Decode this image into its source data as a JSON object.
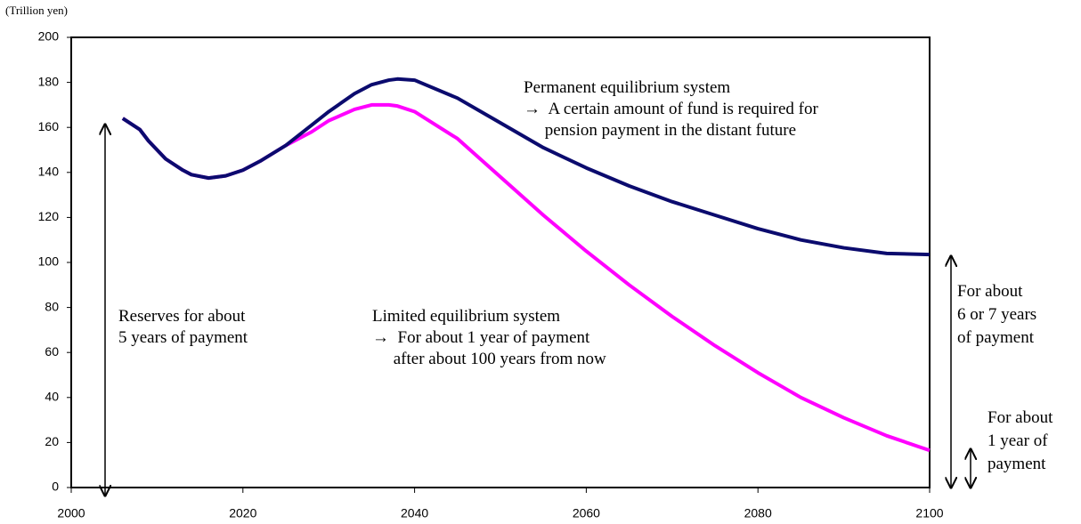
{
  "chart_data": {
    "type": "line",
    "y_axis_label": "(Trillion yen)",
    "x": [
      2006,
      2008,
      2009,
      2011,
      2013,
      2014,
      2016,
      2018,
      2020,
      2022,
      2025,
      2028,
      2030,
      2033,
      2035,
      2037,
      2038,
      2040,
      2045,
      2050,
      2055,
      2060,
      2065,
      2070,
      2075,
      2080,
      2085,
      2090,
      2095,
      2100
    ],
    "series": [
      {
        "color": "#0b0b6e",
        "values": [
          164,
          159,
          154,
          146,
          141,
          139,
          137.5,
          138.5,
          141,
          145,
          152,
          161,
          167,
          175,
          179,
          181,
          181.5,
          181,
          173,
          162,
          151,
          142,
          134,
          127,
          121,
          115,
          110,
          106.5,
          104,
          103.5
        ]
      },
      {
        "color": "#ff00ff",
        "values": [
          164,
          159,
          154,
          146,
          141,
          139,
          137.5,
          138.5,
          141,
          145,
          152,
          158,
          163,
          168,
          170,
          170,
          169.5,
          167,
          155,
          138,
          121,
          105,
          90,
          76,
          63,
          51,
          40,
          31,
          23,
          16.5
        ]
      }
    ],
    "xlim": [
      2000,
      2100
    ],
    "xticks": [
      2000,
      2020,
      2040,
      2060,
      2080,
      2100
    ],
    "ylim": [
      0,
      200
    ],
    "yticks": [
      0,
      20,
      40,
      60,
      80,
      100,
      120,
      140,
      160,
      180,
      200
    ],
    "annotations": [
      {
        "lines": [
          "Permanent equilibrium system",
          "→  A certain amount of fund is required for",
          "     pension payment in the distant future"
        ]
      },
      {
        "lines": [
          "Reserves for about",
          "5 years of payment"
        ]
      },
      {
        "lines": [
          "Limited equilibrium system",
          "→  For about 1 year of payment",
          "     after about 100 years from now"
        ]
      },
      {
        "lines": [
          "For about",
          "6 or 7 years",
          "of payment"
        ]
      },
      {
        "lines": [
          "For about",
          "1 year of",
          "payment"
        ]
      }
    ]
  }
}
